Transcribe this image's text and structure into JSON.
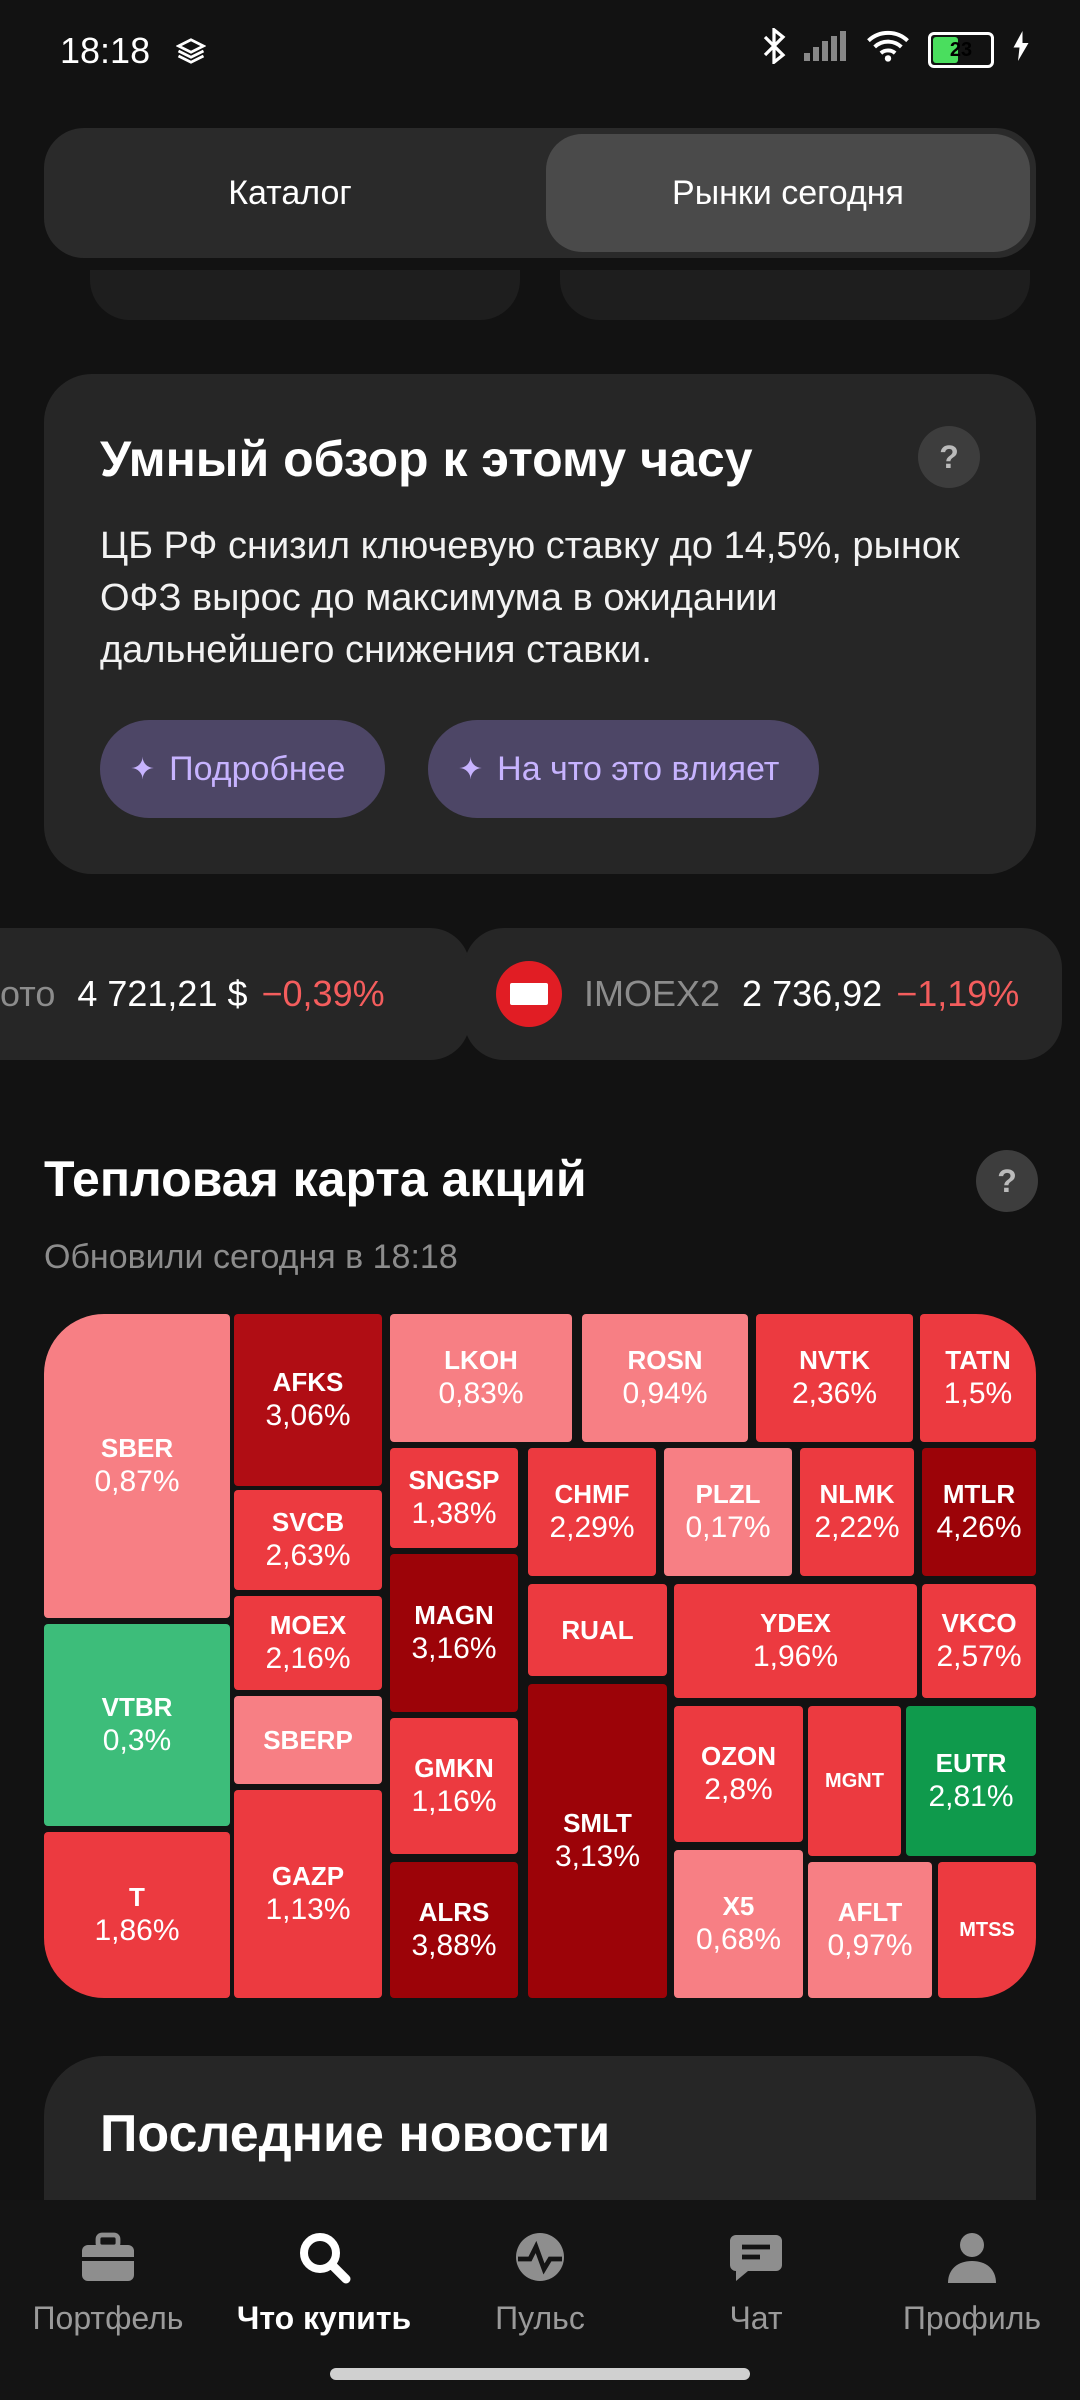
{
  "status": {
    "time": "18:18",
    "battery": "23"
  },
  "segment": {
    "tabs": [
      "Каталог",
      "Рынки сегодня"
    ],
    "active": 1
  },
  "review": {
    "title": "Умный обзор к этому часу",
    "help": "?",
    "text": "ЦБ РФ снизил ключевую ставку до 14,5%, рынок ОФЗ вырос до максимума в ожидании дальнейшего снижения ставки.",
    "buttons": [
      "Подробнее",
      "На что это влияет"
    ]
  },
  "tickers": [
    {
      "name": "ото",
      "price": "4 721,21 $",
      "change": "−0,39%"
    },
    {
      "name": "IMOEX2",
      "price": "2 736,92",
      "change": "−1,19%"
    }
  ],
  "heatmap": {
    "title": "Тепловая карта акций",
    "updated": "Обновили сегодня в 18:18",
    "help": "?",
    "colors": {
      "light": "#f77f84",
      "mid": "#ec3a40",
      "dark": "#b00d14",
      "darker": "#9c0308",
      "green_light": "#3dbd7a",
      "green": "#0f9a4c"
    },
    "tiles": [
      {
        "ticker": "SBER",
        "change": "0,87%"
      },
      {
        "ticker": "AFKS",
        "change": "3,06%"
      },
      {
        "ticker": "LKOH",
        "change": "0,83%"
      },
      {
        "ticker": "ROSN",
        "change": "0,94%"
      },
      {
        "ticker": "NVTK",
        "change": "2,36%"
      },
      {
        "ticker": "TATN",
        "change": "1,5%"
      },
      {
        "ticker": "SVCB",
        "change": "2,63%"
      },
      {
        "ticker": "SNGSP",
        "change": "1,38%"
      },
      {
        "ticker": "CHMF",
        "change": "2,29%"
      },
      {
        "ticker": "PLZL",
        "change": "0,17%"
      },
      {
        "ticker": "NLMK",
        "change": "2,22%"
      },
      {
        "ticker": "MTLR",
        "change": "4,26%"
      },
      {
        "ticker": "MOEX",
        "change": "2,16%"
      },
      {
        "ticker": "MAGN",
        "change": "3,16%"
      },
      {
        "ticker": "RUAL",
        "change": ""
      },
      {
        "ticker": "YDEX",
        "change": "1,96%"
      },
      {
        "ticker": "VKCO",
        "change": "2,57%"
      },
      {
        "ticker": "VTBR",
        "change": "0,3%"
      },
      {
        "ticker": "SBERP",
        "change": ""
      },
      {
        "ticker": "GMKN",
        "change": "1,16%"
      },
      {
        "ticker": "SMLT",
        "change": "3,13%"
      },
      {
        "ticker": "OZON",
        "change": "2,8%"
      },
      {
        "ticker": "MGNT",
        "change": ""
      },
      {
        "ticker": "EUTR",
        "change": "2,81%"
      },
      {
        "ticker": "T",
        "change": "1,86%"
      },
      {
        "ticker": "GAZP",
        "change": "1,13%"
      },
      {
        "ticker": "ALRS",
        "change": "3,88%"
      },
      {
        "ticker": "X5",
        "change": "0,68%"
      },
      {
        "ticker": "AFLT",
        "change": "0,97%"
      },
      {
        "ticker": "MTSS",
        "change": ""
      }
    ]
  },
  "news": {
    "title": "Последние новости"
  },
  "nav": {
    "items": [
      {
        "label": "Портфель",
        "icon": "briefcase-icon"
      },
      {
        "label": "Что купить",
        "icon": "search-icon"
      },
      {
        "label": "Пульс",
        "icon": "pulse-icon"
      },
      {
        "label": "Чат",
        "icon": "chat-icon"
      },
      {
        "label": "Профиль",
        "icon": "profile-icon"
      }
    ],
    "active": 1
  }
}
